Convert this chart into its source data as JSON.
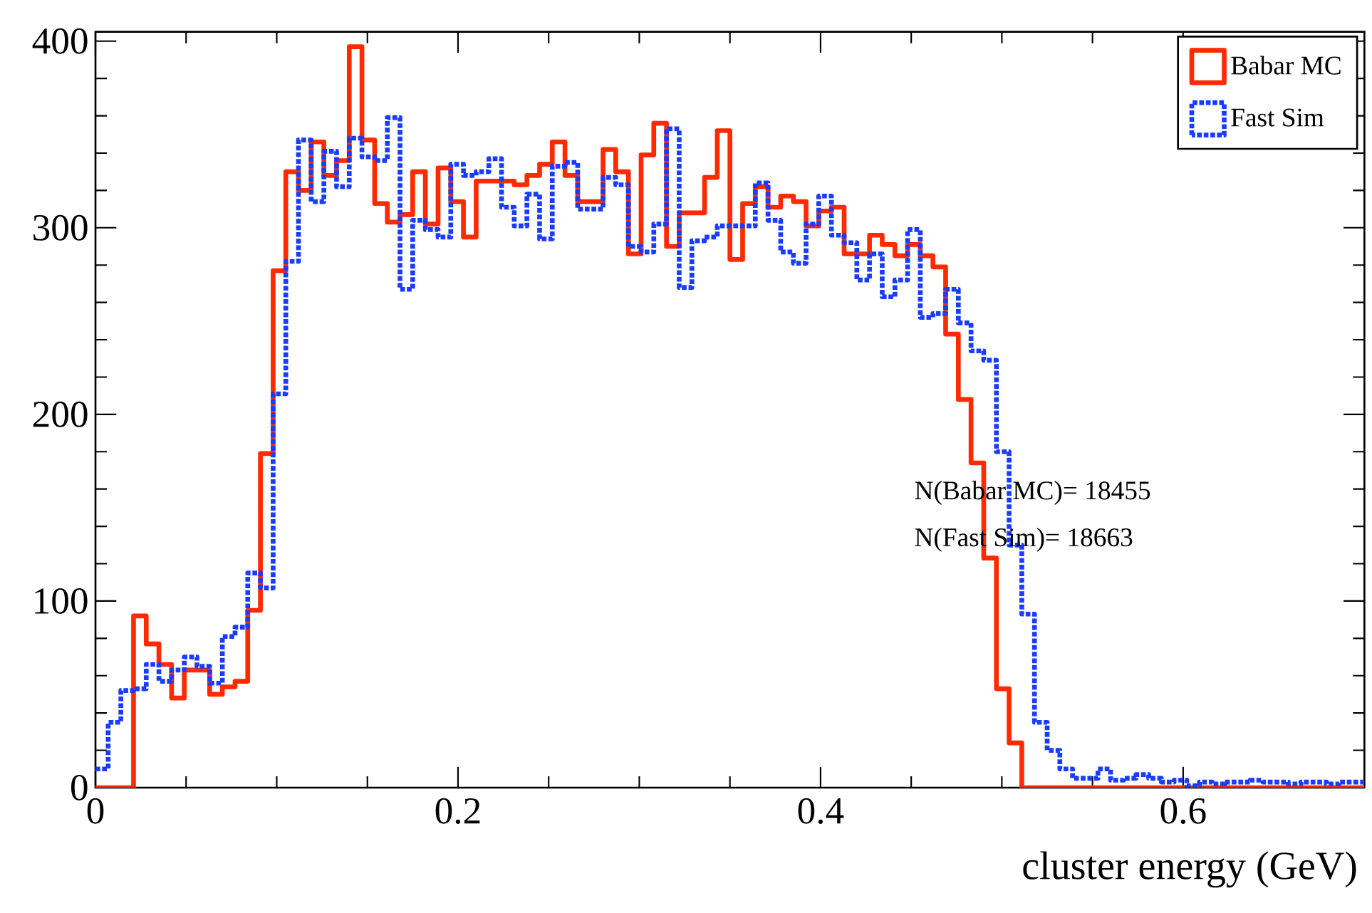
{
  "chart_data": {
    "type": "histogram",
    "xlabel": "cluster energy (GeV)",
    "bins": [
      0,
      0.007,
      0.014,
      0.021,
      0.028,
      0.035,
      0.042,
      0.049,
      0.056,
      0.063,
      0.07,
      0.077,
      0.084,
      0.091,
      0.098,
      0.105,
      0.112,
      0.119,
      0.126,
      0.133,
      0.14,
      0.147,
      0.154,
      0.161,
      0.168,
      0.175,
      0.182,
      0.189,
      0.196,
      0.203,
      0.21,
      0.217,
      0.224,
      0.231,
      0.238,
      0.245,
      0.252,
      0.259,
      0.266,
      0.273,
      0.28,
      0.287,
      0.294,
      0.301,
      0.308,
      0.315,
      0.322,
      0.329,
      0.336,
      0.343,
      0.35,
      0.357,
      0.364,
      0.371,
      0.378,
      0.385,
      0.392,
      0.399,
      0.406,
      0.413,
      0.42,
      0.427,
      0.434,
      0.441,
      0.448,
      0.455,
      0.462,
      0.469,
      0.476,
      0.483,
      0.49,
      0.497,
      0.504,
      0.511,
      0.518,
      0.525,
      0.532,
      0.539,
      0.546,
      0.553,
      0.56,
      0.567,
      0.574,
      0.581,
      0.588,
      0.595,
      0.602,
      0.609,
      0.616,
      0.623,
      0.63,
      0.637,
      0.644,
      0.651,
      0.658,
      0.665,
      0.672,
      0.679,
      0.686,
      0.693,
      0.7
    ],
    "series": [
      {
        "name": "Babar MC",
        "color": "#ff2a00",
        "line_style": "solid",
        "values": [
          0,
          0,
          0,
          92,
          77,
          66,
          48,
          63,
          63,
          50,
          54,
          57,
          95,
          179,
          277,
          330,
          320,
          346,
          328,
          336,
          397,
          347,
          313,
          303,
          307,
          330,
          302,
          332,
          314,
          295,
          325,
          325,
          325,
          323,
          328,
          334,
          346,
          328,
          314,
          314,
          342,
          330,
          286,
          339,
          356,
          290,
          308,
          308,
          327,
          352,
          283,
          313,
          322,
          311,
          317,
          314,
          301,
          309,
          311,
          286,
          286,
          296,
          291,
          285,
          291,
          285,
          279,
          243,
          208,
          174,
          123,
          53,
          24,
          0,
          0,
          0,
          0,
          0,
          0,
          0,
          0,
          0,
          0,
          0,
          0,
          0,
          0,
          0,
          0,
          0,
          0,
          0,
          0,
          0,
          0,
          0,
          0,
          0,
          0,
          0
        ]
      },
      {
        "name": "Fast Sim",
        "color": "#1a3cff",
        "line_style": "dotted",
        "values": [
          10,
          35,
          52,
          53,
          66,
          57,
          63,
          70,
          65,
          56,
          81,
          86,
          115,
          107,
          211,
          282,
          347,
          314,
          341,
          322,
          348,
          338,
          336,
          359,
          267,
          304,
          299,
          295,
          334,
          328,
          330,
          337,
          311,
          301,
          318,
          294,
          333,
          335,
          310,
          310,
          327,
          323,
          290,
          287,
          302,
          353,
          268,
          293,
          295,
          301,
          301,
          301,
          324,
          304,
          287,
          281,
          302,
          317,
          296,
          292,
          272,
          286,
          263,
          272,
          299,
          252,
          254,
          267,
          249,
          234,
          229,
          180,
          130,
          93,
          35,
          20,
          10,
          5,
          5,
          10,
          4,
          5,
          7,
          5,
          3,
          4,
          1,
          3,
          2,
          3,
          3,
          4,
          3,
          3,
          2,
          3,
          3,
          2,
          3,
          3
        ]
      }
    ],
    "xlim": [
      0,
      0.7
    ],
    "ylim": [
      0,
      405
    ],
    "xticks": [
      0,
      0.2,
      0.4,
      0.6
    ],
    "yticks": [
      0,
      100,
      200,
      300,
      400
    ],
    "legend": "top right",
    "marker": "none",
    "annotations": [
      "N(Babar MC)= 18455",
      "N(Fast Sim)= 18663"
    ]
  }
}
